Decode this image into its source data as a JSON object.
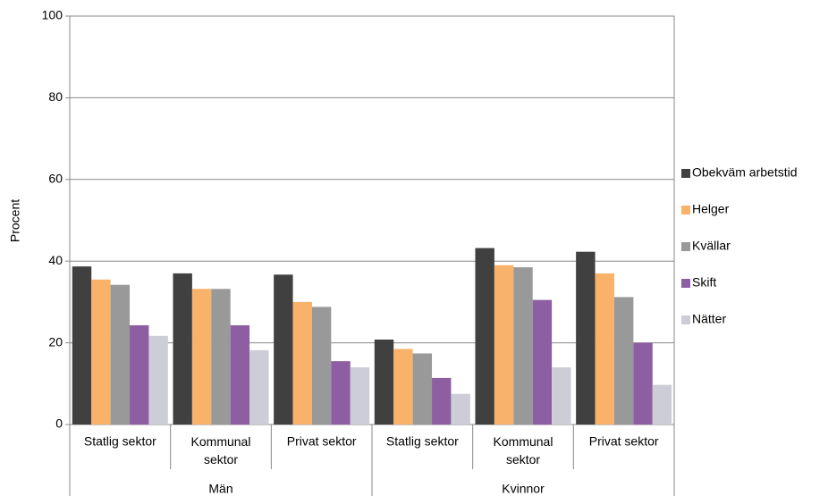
{
  "chart_data": {
    "type": "bar",
    "y_label": "Procent",
    "groups": [
      {
        "label": "Män",
        "categories": [
          "Statlig sektor",
          "Kommunal sektor",
          "Privat sektor"
        ]
      },
      {
        "label": "Kvinnor",
        "categories": [
          "Statlig sektor",
          "Kommunal sektor",
          "Privat sektor"
        ]
      }
    ],
    "series": [
      {
        "name": "Obekväm arbetstid",
        "color": "#404040",
        "values": [
          38.7,
          37,
          36.7,
          20.8,
          43.2,
          42.3
        ]
      },
      {
        "name": "Helger",
        "color": "#f9b26a",
        "values": [
          35.5,
          33.2,
          30,
          18.5,
          39,
          37
        ]
      },
      {
        "name": "Kvällar",
        "color": "#999999",
        "values": [
          34.2,
          33.2,
          28.8,
          17.4,
          38.5,
          31.2
        ]
      },
      {
        "name": "Skift",
        "color": "#8e5ea2",
        "values": [
          24.3,
          24.3,
          15.5,
          11.4,
          30.5,
          20
        ]
      },
      {
        "name": "Nätter",
        "color": "#cdcdd8",
        "values": [
          21.7,
          18.2,
          14,
          7.5,
          14,
          9.7
        ]
      }
    ],
    "ylim": [
      0,
      100
    ],
    "yticks": [
      0,
      20,
      40,
      60,
      80,
      100
    ],
    "grid": true,
    "legend": "right"
  }
}
